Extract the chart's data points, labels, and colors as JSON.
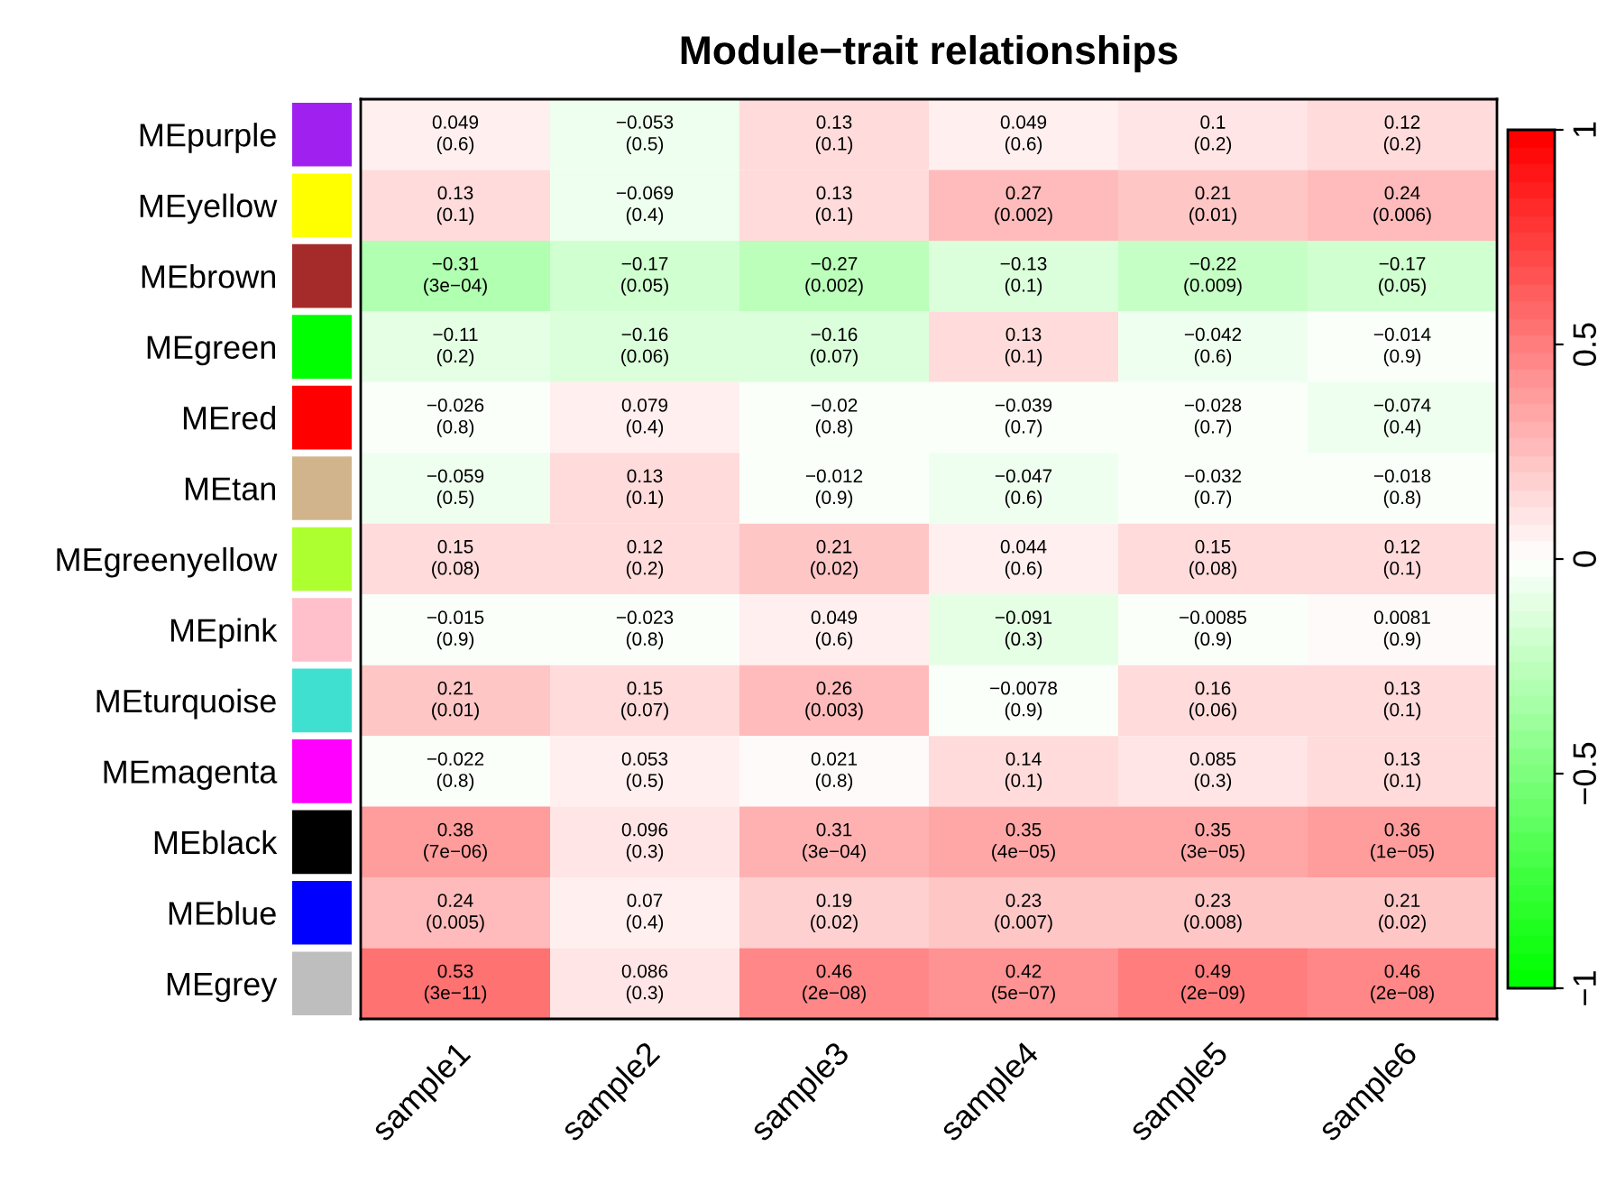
{
  "chart_data": {
    "type": "heatmap",
    "title": "Module−trait relationships",
    "categories": [
      "sample1",
      "sample2",
      "sample3",
      "sample4",
      "sample5",
      "sample6"
    ],
    "y_categories": [
      "MEpurple",
      "MEyellow",
      "MEbrown",
      "MEgreen",
      "MEred",
      "MEtan",
      "MEgreenyellow",
      "MEpink",
      "MEturquoise",
      "MEmagenta",
      "MEblack",
      "MEblue",
      "MEgrey"
    ],
    "colors": [
      "#a020f0",
      "#ffff00",
      "#a52a2a",
      "#00ff00",
      "#ff0000",
      "#d2b48c",
      "#adff2f",
      "#ffc0cb",
      "#40e0d0",
      "#ff00ff",
      "#000000",
      "#0000ff",
      "#bebebe"
    ],
    "cells": [
      [
        0.049,
        -0.053,
        0.13,
        0.049,
        0.1,
        0.12
      ],
      [
        0.13,
        -0.069,
        0.13,
        0.27,
        0.21,
        0.24
      ],
      [
        -0.31,
        -0.17,
        -0.27,
        -0.13,
        -0.22,
        -0.17
      ],
      [
        -0.11,
        -0.16,
        -0.16,
        0.13,
        -0.042,
        -0.014
      ],
      [
        -0.026,
        0.079,
        -0.02,
        -0.039,
        -0.028,
        -0.074
      ],
      [
        -0.059,
        0.13,
        -0.012,
        -0.047,
        -0.032,
        -0.018
      ],
      [
        0.15,
        0.12,
        0.21,
        0.044,
        0.15,
        0.12
      ],
      [
        -0.015,
        -0.023,
        0.049,
        -0.091,
        -0.0085,
        0.0081
      ],
      [
        0.21,
        0.15,
        0.26,
        -0.0078,
        0.16,
        0.13
      ],
      [
        -0.022,
        0.053,
        0.021,
        0.14,
        0.085,
        0.13
      ],
      [
        0.38,
        0.096,
        0.31,
        0.35,
        0.35,
        0.36
      ],
      [
        0.24,
        0.07,
        0.19,
        0.23,
        0.23,
        0.21
      ],
      [
        0.53,
        0.086,
        0.46,
        0.42,
        0.49,
        0.46
      ]
    ],
    "cell_labels": [
      [
        "0.049\n(0.6)",
        "−0.053\n(0.5)",
        "0.13\n(0.1)",
        "0.049\n(0.6)",
        "0.1\n(0.2)",
        "0.12\n(0.2)"
      ],
      [
        "0.13\n(0.1)",
        "−0.069\n(0.4)",
        "0.13\n(0.1)",
        "0.27\n(0.002)",
        "0.21\n(0.01)",
        "0.24\n(0.006)"
      ],
      [
        "−0.31\n(3e−04)",
        "−0.17\n(0.05)",
        "−0.27\n(0.002)",
        "−0.13\n(0.1)",
        "−0.22\n(0.009)",
        "−0.17\n(0.05)"
      ],
      [
        "−0.11\n(0.2)",
        "−0.16\n(0.06)",
        "−0.16\n(0.07)",
        "0.13\n(0.1)",
        "−0.042\n(0.6)",
        "−0.014\n(0.9)"
      ],
      [
        "−0.026\n(0.8)",
        "0.079\n(0.4)",
        "−0.02\n(0.8)",
        "−0.039\n(0.7)",
        "−0.028\n(0.7)",
        "−0.074\n(0.4)"
      ],
      [
        "−0.059\n(0.5)",
        "0.13\n(0.1)",
        "−0.012\n(0.9)",
        "−0.047\n(0.6)",
        "−0.032\n(0.7)",
        "−0.018\n(0.8)"
      ],
      [
        "0.15\n(0.08)",
        "0.12\n(0.2)",
        "0.21\n(0.02)",
        "0.044\n(0.6)",
        "0.15\n(0.08)",
        "0.12\n(0.1)"
      ],
      [
        "−0.015\n(0.9)",
        "−0.023\n(0.8)",
        "0.049\n(0.6)",
        "−0.091\n(0.3)",
        "−0.0085\n(0.9)",
        "0.0081\n(0.9)"
      ],
      [
        "0.21\n(0.01)",
        "0.15\n(0.07)",
        "0.26\n(0.003)",
        "−0.0078\n(0.9)",
        "0.16\n(0.06)",
        "0.13\n(0.1)"
      ],
      [
        "−0.022\n(0.8)",
        "0.053\n(0.5)",
        "0.021\n(0.8)",
        "0.14\n(0.1)",
        "0.085\n(0.3)",
        "0.13\n(0.1)"
      ],
      [
        "0.38\n(7e−06)",
        "0.096\n(0.3)",
        "0.31\n(3e−04)",
        "0.35\n(4e−05)",
        "0.35\n(3e−05)",
        "0.36\n(1e−05)"
      ],
      [
        "0.24\n(0.005)",
        "0.07\n(0.4)",
        "0.19\n(0.02)",
        "0.23\n(0.007)",
        "0.23\n(0.008)",
        "0.21\n(0.02)"
      ],
      [
        "0.53\n(3e−11)",
        "0.086\n(0.3)",
        "0.46\n(2e−08)",
        "0.42\n(5e−07)",
        "0.49\n(2e−09)",
        "0.46\n(2e−08)"
      ]
    ],
    "clim": [
      -1,
      1
    ],
    "cticks": [
      {
        "value": -1,
        "label": "−1"
      },
      {
        "value": -0.5,
        "label": "−0.5"
      },
      0,
      0.5,
      1
    ]
  }
}
